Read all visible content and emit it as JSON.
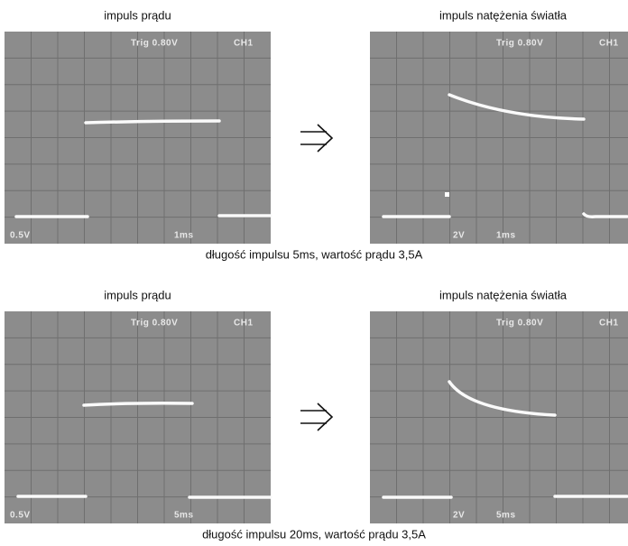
{
  "rows": [
    {
      "panels": [
        {
          "title": "impuls prądu",
          "trigger": "Trig 0.80V",
          "channel": "CH1",
          "volts": "0.5V",
          "time": "1ms"
        },
        {
          "title": "impuls natężenia światła",
          "trigger": "Trig 0.80V",
          "channel": "CH1",
          "volts": "2V",
          "time": "1ms"
        }
      ],
      "caption": "długość impulsu 5ms, wartość prądu 3,5A"
    },
    {
      "panels": [
        {
          "title": "impuls prądu",
          "trigger": "Trig 0.80V",
          "channel": "CH1",
          "volts": "0.5V",
          "time": "5ms"
        },
        {
          "title": "impuls natężenia światła",
          "trigger": "Trig 0.80V",
          "channel": "CH1",
          "volts": "2V",
          "time": "5ms"
        }
      ],
      "caption": "długość impulsu 20ms, wartość prądu 3,5A"
    }
  ]
}
